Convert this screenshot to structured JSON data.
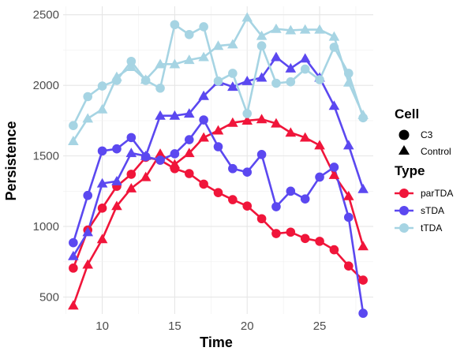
{
  "chart_data": {
    "type": "line",
    "xlabel": "Time",
    "ylabel": "Persistence",
    "xlim": [
      7.3,
      28.7
    ],
    "ylim": [
      380,
      2560
    ],
    "x_ticks": [
      10,
      15,
      20,
      25
    ],
    "y_ticks": [
      500,
      1000,
      1500,
      2000,
      2500
    ],
    "grid": true,
    "legend_position": "right",
    "legend_cell_title": "Cell",
    "legend_type_title": "Type",
    "cell_labels": {
      "C3": "C3",
      "Control": "Control"
    },
    "colors": {
      "parTDA": "#F0153A",
      "sTDA": "#5B48F0",
      "tTDA": "#A6D4E3"
    },
    "x": [
      8,
      9,
      10,
      11,
      12,
      13,
      14,
      15,
      16,
      17,
      18,
      19,
      20,
      21,
      22,
      23,
      24,
      25,
      26,
      27,
      28
    ],
    "series": [
      {
        "name": "parTDA",
        "cell": "C3",
        "values": [
          705,
          975,
          1130,
          1285,
          1370,
          1490,
          1470,
          1410,
          1375,
          1300,
          1240,
          1190,
          1145,
          1055,
          950,
          960,
          915,
          895,
          835,
          720,
          620
        ]
      },
      {
        "name": "parTDA",
        "cell": "Control",
        "values": [
          440,
          730,
          910,
          1145,
          1270,
          1350,
          1515,
          1440,
          1520,
          1630,
          1680,
          1735,
          1750,
          1760,
          1730,
          1665,
          1630,
          1575,
          1365,
          1215,
          860
        ]
      },
      {
        "name": "sTDA",
        "cell": "C3",
        "values": [
          885,
          1220,
          1535,
          1550,
          1630,
          1495,
          1470,
          1515,
          1615,
          1755,
          1565,
          1410,
          1385,
          1510,
          1140,
          1250,
          1195,
          1350,
          1420,
          1065,
          385
        ]
      },
      {
        "name": "sTDA",
        "cell": "Control",
        "values": [
          790,
          960,
          1305,
          1320,
          1520,
          1500,
          1785,
          1785,
          1800,
          1925,
          2025,
          1990,
          2030,
          2055,
          2200,
          2120,
          2190,
          2055,
          1855,
          1575,
          1265
        ]
      },
      {
        "name": "tTDA",
        "cell": "C3",
        "values": [
          1715,
          1920,
          1995,
          2035,
          2170,
          2035,
          1980,
          2430,
          2360,
          2415,
          2030,
          2085,
          1800,
          2280,
          2015,
          2025,
          2115,
          2040,
          2270,
          2085,
          1770
        ]
      },
      {
        "name": "tTDA",
        "cell": "Control",
        "values": [
          1605,
          1765,
          1830,
          2060,
          2130,
          2040,
          2150,
          2150,
          2180,
          2200,
          2280,
          2290,
          2480,
          2350,
          2400,
          2390,
          2395,
          2395,
          2345,
          2020,
          1790
        ]
      }
    ]
  }
}
